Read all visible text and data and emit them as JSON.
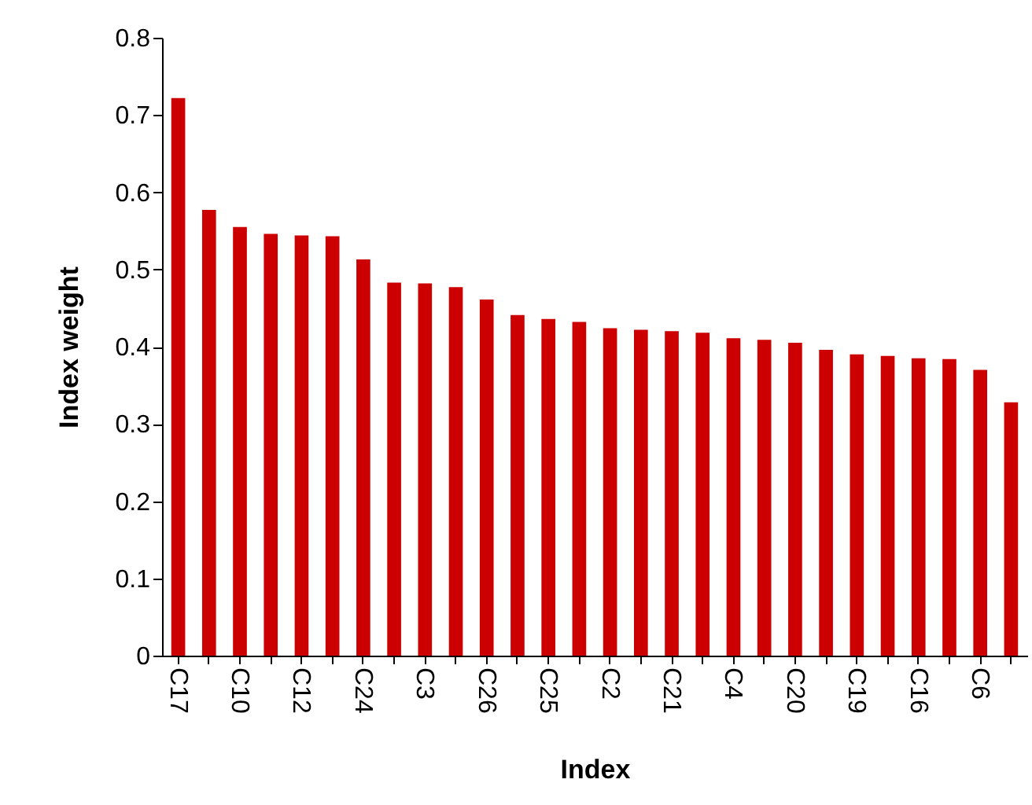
{
  "chart_data": {
    "type": "bar",
    "xlabel": "Index",
    "ylabel": "Index weight",
    "categories": [
      "C17",
      null,
      "C10",
      null,
      "C12",
      null,
      "C24",
      null,
      "C3",
      null,
      "C26",
      null,
      "C25",
      null,
      "C2",
      null,
      "C21",
      null,
      "C4",
      null,
      "C20",
      null,
      "C19",
      null,
      "C16",
      null,
      "C6",
      null
    ],
    "values": [
      0.722,
      0.577,
      0.555,
      0.546,
      0.544,
      0.543,
      0.513,
      0.483,
      0.482,
      0.477,
      0.461,
      0.441,
      0.436,
      0.432,
      0.424,
      0.422,
      0.42,
      0.418,
      0.411,
      0.409,
      0.405,
      0.396,
      0.39,
      0.388,
      0.385,
      0.384,
      0.37,
      0.328
    ],
    "color": "#cc0000",
    "ylim": [
      0,
      0.8
    ],
    "yticks": [
      0,
      0.1,
      0.2,
      0.3,
      0.4,
      0.5,
      0.6,
      0.7,
      0.8
    ],
    "grid": false
  }
}
